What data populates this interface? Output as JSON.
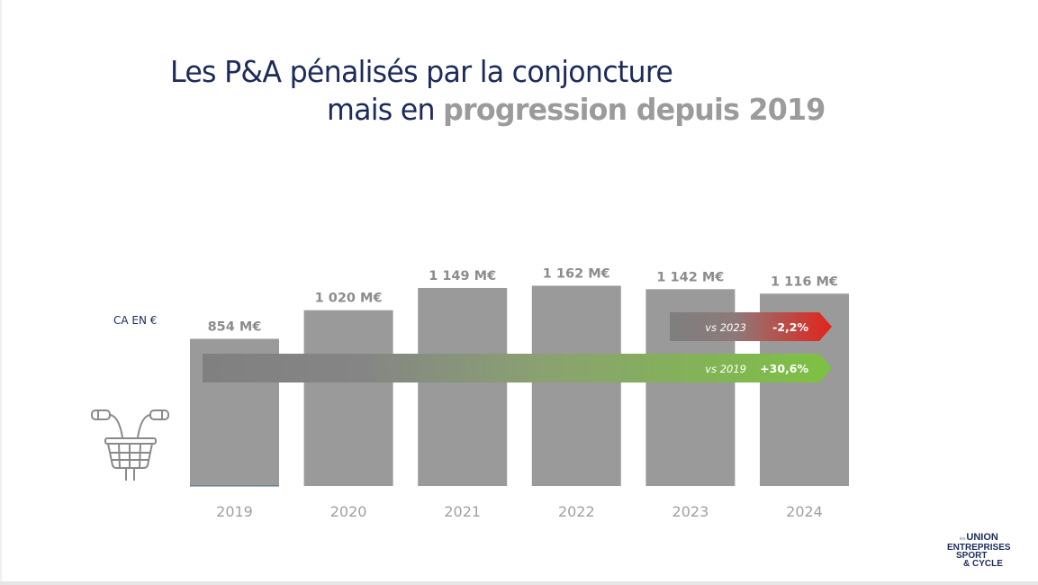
{
  "slide": {
    "title_line1": "Les P&A pénalisés par la conjoncture",
    "title_line2_prefix": "mais en ",
    "title_line2_highlight": "progression depuis 2019",
    "y_label": "CA EN €",
    "icon": "bike-basket-handlebar-icon",
    "logo": {
      "small": "les",
      "line1": "UNION",
      "line2": "ENTREPRISES",
      "line3": "SPORT",
      "line4": "& CYCLE"
    }
  },
  "colors": {
    "title": "#1c2b5a",
    "highlight": "#9b9b9b",
    "bar": "#9a9a9a",
    "bar_label": "#8c8c8c",
    "axis_label": "#a0a0a0",
    "positive": "#7dc142",
    "negative": "#e2231a",
    "arrow_start": "#808080"
  },
  "chart_data": {
    "type": "bar",
    "title": "Les P&A pénalisés par la conjoncture mais en progression depuis 2019",
    "xlabel": "",
    "ylabel": "CA EN €",
    "unit": "M€",
    "categories": [
      "2019",
      "2020",
      "2021",
      "2022",
      "2023",
      "2024"
    ],
    "values": [
      854,
      1020,
      1149,
      1162,
      1142,
      1116
    ],
    "data_labels": [
      "854 M€",
      "1 020 M€",
      "1 149 M€",
      "1 162 M€",
      "1 142 M€",
      "1 116 M€"
    ],
    "ylim": [
      0,
      1200
    ],
    "grid": false,
    "annotations": [
      {
        "type": "arrow",
        "from": "2023",
        "to": "2024",
        "label": "vs 2023",
        "value": "-2,2%",
        "trend": "negative"
      },
      {
        "type": "arrow",
        "from": "2019",
        "to": "2024",
        "label": "vs 2019",
        "value": "+30,6%",
        "trend": "positive"
      }
    ]
  }
}
